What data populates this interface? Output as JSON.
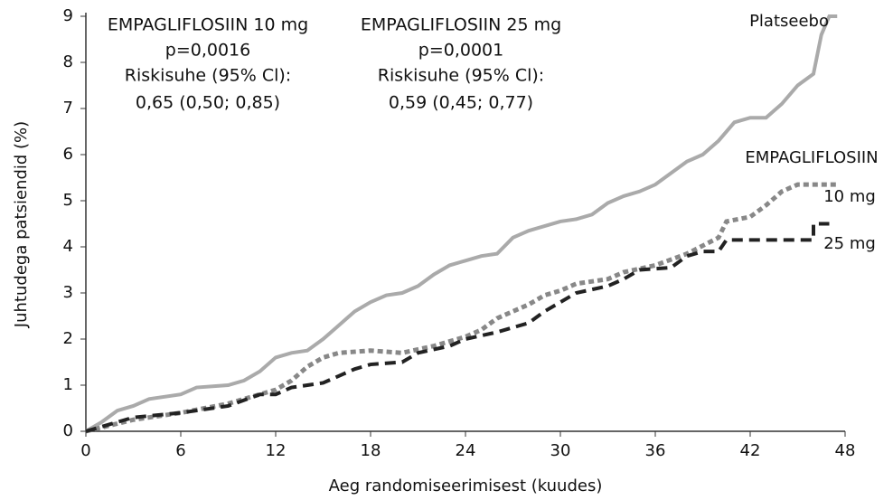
{
  "chart_data": {
    "type": "line",
    "xlabel": "Aeg randomiseerimisest (kuudes)",
    "ylabel": "Juhtudega patsiendid (%)",
    "xlim": [
      0,
      48
    ],
    "ylim": [
      0,
      9
    ],
    "xticks": [
      0,
      6,
      12,
      18,
      24,
      30,
      36,
      42,
      48
    ],
    "yticks": [
      0,
      1,
      2,
      3,
      4,
      5,
      6,
      7,
      8,
      9
    ],
    "annotations": [
      [
        "EMPAGLIFLOSIIN 10 mg",
        "p=0,0016",
        "Riskisuhe (95% Cl):",
        "0,65 (0,50; 0,85)"
      ],
      [
        "EMPAGLIFLOSIIN 25 mg",
        "p=0,0001",
        "Riskisuhe (95% Cl):",
        "0,59 (0,45; 0,77)"
      ]
    ],
    "group_label": "EMPAGLIFLOSIIN",
    "series": [
      {
        "name": "Platseebo",
        "color": "#aaaaaa",
        "style": "solid",
        "x": [
          0,
          1,
          2,
          3,
          4,
          6,
          7,
          9,
          10,
          11,
          12,
          13,
          14,
          15,
          16,
          17,
          18,
          19,
          20,
          21,
          22,
          23,
          24,
          25,
          26,
          27,
          28,
          29,
          30,
          31,
          32,
          33,
          34,
          35,
          36,
          37,
          38,
          39,
          40,
          41,
          42,
          43,
          44,
          45,
          46,
          46.5,
          47,
          47.5
        ],
        "values": [
          0,
          0.2,
          0.45,
          0.55,
          0.7,
          0.8,
          0.95,
          1.0,
          1.1,
          1.3,
          1.6,
          1.7,
          1.75,
          2.0,
          2.3,
          2.6,
          2.8,
          2.95,
          3.0,
          3.15,
          3.4,
          3.6,
          3.7,
          3.8,
          3.85,
          4.2,
          4.35,
          4.45,
          4.55,
          4.6,
          4.7,
          4.95,
          5.1,
          5.2,
          5.35,
          5.6,
          5.85,
          6.0,
          6.3,
          6.7,
          6.8,
          6.8,
          7.1,
          7.5,
          7.75,
          8.6,
          9.0,
          9.0
        ]
      },
      {
        "name": "10 mg",
        "color": "#888888",
        "style": "dotted",
        "x": [
          0,
          3,
          6,
          9,
          11,
          12,
          13,
          14,
          15,
          16,
          18,
          20,
          22,
          24,
          25,
          26,
          28,
          29,
          30,
          31,
          33,
          34,
          36,
          38,
          40,
          40.5,
          42,
          43,
          44,
          45,
          47.5
        ],
        "values": [
          0,
          0.25,
          0.4,
          0.6,
          0.8,
          0.9,
          1.1,
          1.4,
          1.6,
          1.7,
          1.75,
          1.7,
          1.85,
          2.05,
          2.2,
          2.45,
          2.75,
          2.95,
          3.05,
          3.2,
          3.3,
          3.45,
          3.6,
          3.85,
          4.2,
          4.55,
          4.65,
          4.9,
          5.2,
          5.35,
          5.35
        ]
      },
      {
        "name": "25 mg",
        "color": "#222222",
        "style": "dashed",
        "x": [
          0,
          3,
          6,
          9,
          11,
          12,
          13,
          15,
          16,
          17,
          18,
          20,
          21,
          23,
          24,
          26,
          28,
          29,
          30,
          31,
          33,
          34,
          35,
          37,
          38,
          39,
          40,
          40.5,
          46,
          46,
          47
        ],
        "values": [
          0,
          0.3,
          0.4,
          0.55,
          0.8,
          0.8,
          0.95,
          1.05,
          1.2,
          1.35,
          1.45,
          1.5,
          1.7,
          1.85,
          2.0,
          2.15,
          2.35,
          2.6,
          2.8,
          3.0,
          3.15,
          3.3,
          3.5,
          3.55,
          3.8,
          3.9,
          3.9,
          4.15,
          4.15,
          4.5,
          4.5
        ]
      }
    ]
  }
}
